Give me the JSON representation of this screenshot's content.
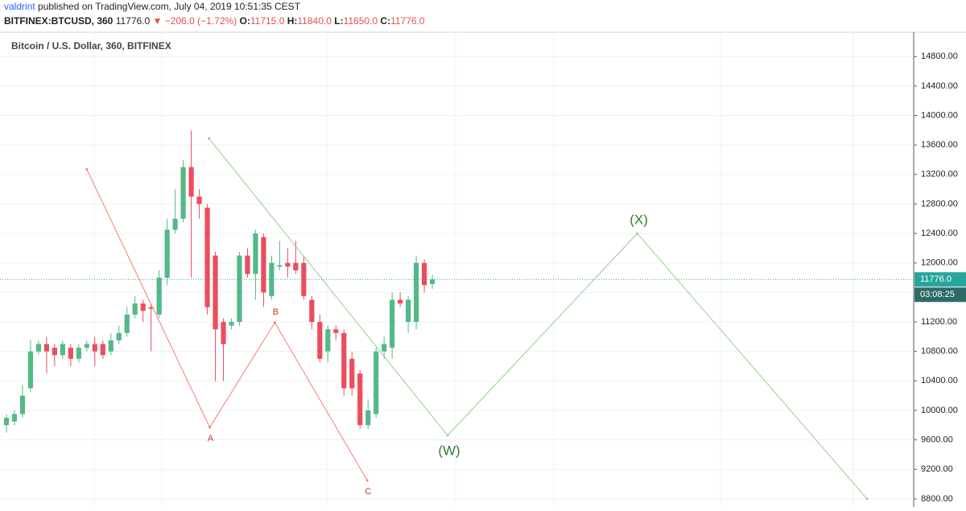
{
  "chart_data": {
    "type": "candlestick",
    "header": {
      "author": "valdrint",
      "published": "published on TradingView.com, July 04, 2019 10:51:35 CEST",
      "symbol": "BITFINEX:BTCUSD, 360",
      "last": "11776.0",
      "arrow": "▼",
      "change": "−206.0 (−1.72%)",
      "ohlc": [
        {
          "key": "O:",
          "value": "11715.0"
        },
        {
          "key": "H:",
          "value": "11840.0"
        },
        {
          "key": "L:",
          "value": "11650.0"
        },
        {
          "key": "C:",
          "value": "11776.0"
        }
      ]
    },
    "title": "Bitcoin / U.S. Dollar, 360, BITFINEX",
    "categories": [
      null,
      null,
      null,
      null,
      null,
      null,
      null,
      null,
      null,
      null,
      null,
      null,
      null,
      null,
      null,
      null,
      null,
      null,
      null,
      null,
      null,
      null,
      null,
      null,
      null,
      null,
      null,
      null,
      null,
      null,
      null,
      null,
      null,
      null,
      null,
      null,
      null,
      null,
      null,
      null,
      null,
      null,
      null,
      null,
      null,
      null,
      null,
      null,
      null,
      null,
      null,
      null,
      null,
      null
    ],
    "open": [
      9800,
      9850,
      9950,
      10300,
      10800,
      10900,
      10850,
      10750,
      10850,
      10700,
      10850,
      10900,
      10900,
      10800,
      10950,
      11050,
      11300,
      11450,
      11400,
      11300,
      11800,
      12450,
      12600,
      13300,
      12900,
      12750,
      12100,
      11200,
      11150,
      11200,
      12100,
      11850,
      12350,
      11550,
      11950,
      12000,
      12000,
      12000,
      11500,
      11200,
      10800,
      11100,
      11050,
      10700,
      10500,
      9800,
      9950,
      10800,
      10850,
      11500,
      11200,
      11200,
      12000,
      11715
    ],
    "high": [
      9950,
      10000,
      10350,
      10950,
      10950,
      11000,
      10900,
      10950,
      10900,
      10900,
      10950,
      11000,
      10950,
      11050,
      11150,
      11400,
      11550,
      11500,
      11450,
      11900,
      12600,
      13000,
      13400,
      13800,
      13000,
      12800,
      12150,
      11250,
      11250,
      12150,
      12200,
      12450,
      12400,
      12100,
      12300,
      12200,
      12300,
      12100,
      11550,
      11300,
      11150,
      11150,
      11100,
      10800,
      10550,
      10150,
      10850,
      11000,
      11600,
      11600,
      11550,
      12100,
      12050,
      11840
    ],
    "low": [
      9700,
      9800,
      9900,
      10250,
      10750,
      10500,
      10600,
      10700,
      10600,
      10650,
      10800,
      10600,
      10700,
      10750,
      10900,
      11000,
      11250,
      11200,
      10800,
      11250,
      11700,
      12400,
      12550,
      11800,
      12600,
      11300,
      10400,
      10400,
      11100,
      11150,
      11800,
      11500,
      11400,
      11500,
      11900,
      11800,
      11850,
      11500,
      11100,
      10650,
      10650,
      10950,
      10200,
      10200,
      9750,
      9750,
      9900,
      10700,
      10700,
      11400,
      11050,
      11100,
      11600,
      11650
    ],
    "close": [
      9900,
      9950,
      10200,
      10800,
      10900,
      10800,
      10750,
      10900,
      10700,
      10850,
      10900,
      10800,
      10750,
      10950,
      11050,
      11300,
      11450,
      11350,
      11380,
      11800,
      12450,
      12600,
      13300,
      12900,
      12800,
      11400,
      11100,
      10900,
      11200,
      12100,
      11850,
      12400,
      11600,
      12000,
      11970,
      11950,
      11900,
      11550,
      11200,
      10700,
      11100,
      11050,
      10300,
      10300,
      9800,
      10000,
      10800,
      10900,
      11500,
      11450,
      11500,
      12000,
      11700,
      11776
    ],
    "up_color": "#53b987",
    "down_color": "#eb4d5c",
    "xlim": [
      -0.8,
      112.9
    ],
    "ylim": [
      8690,
      15130
    ],
    "yticks": [
      {
        "value": 8800,
        "label": "8800.00"
      },
      {
        "value": 9200,
        "label": "9200.00"
      },
      {
        "value": 9600,
        "label": "9600.00"
      },
      {
        "value": 10000,
        "label": "10000.00"
      },
      {
        "value": 10400,
        "label": "10400.00"
      },
      {
        "value": 10800,
        "label": "10800.00"
      },
      {
        "value": 11200,
        "label": "11200.00"
      },
      {
        "value": 11600,
        "label": "11600.00"
      },
      {
        "value": 12000,
        "label": "12000.00"
      },
      {
        "value": 12400,
        "label": "12400.00"
      },
      {
        "value": 12800,
        "label": "12800.00"
      },
      {
        "value": 13200,
        "label": "13200.00"
      },
      {
        "value": 13600,
        "label": "13600.00"
      },
      {
        "value": 14000,
        "label": "14000.00"
      },
      {
        "value": 14400,
        "label": "14400.00"
      },
      {
        "value": 14800,
        "label": "14800.00"
      }
    ],
    "grid": true,
    "last_price": {
      "value": 11776,
      "label": "11776.0",
      "countdown": "03:08:25",
      "color": "#26a69a"
    },
    "waves": [
      {
        "color": "#f08070",
        "label_color": "#c0392b",
        "points": [
          {
            "x": 10,
            "y": 13270
          },
          {
            "x": 25.3,
            "y": 9770,
            "label": "A"
          },
          {
            "x": 33.4,
            "y": 11190,
            "label": "B"
          },
          {
            "x": 44.9,
            "y": 9050,
            "label": "C"
          }
        ]
      },
      {
        "color": "#93d08a",
        "label_color": "#2e7d32",
        "points": [
          {
            "x": 25.2,
            "y": 13690
          },
          {
            "x": 54.9,
            "y": 9660,
            "label": "(W)"
          },
          {
            "x": 78.5,
            "y": 12400,
            "label": "(X)"
          },
          {
            "x": 107.1,
            "y": 8800
          }
        ]
      }
    ]
  }
}
